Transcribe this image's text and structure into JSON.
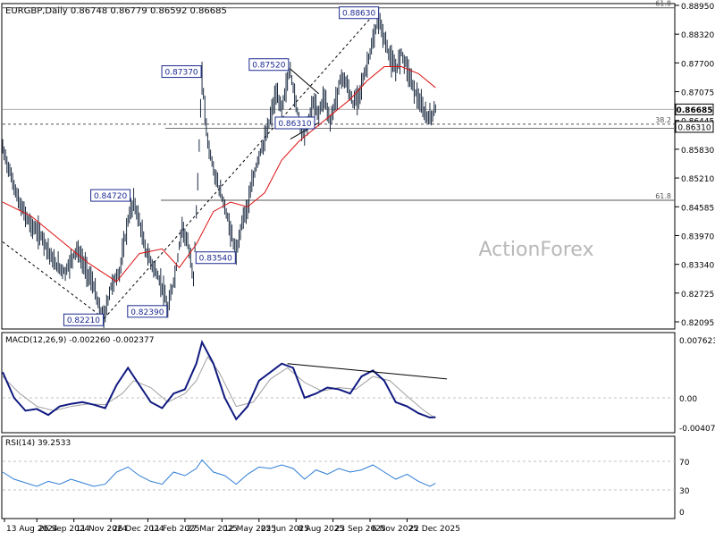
{
  "chart_data": {
    "type": "line",
    "title": "EURGBP,Daily",
    "ohlc_label": "0.86748 0.86779 0.86592 0.86685",
    "watermark": "ActionForex",
    "price_axis": {
      "ylim": [
        0.81985,
        0.8895
      ],
      "ticks": [
        "0.88950",
        "0.88320",
        "0.87700",
        "0.87075",
        "0.86445",
        "0.85830",
        "0.85210",
        "0.84585",
        "0.83970",
        "0.83340",
        "0.82725",
        "0.82095"
      ],
      "current_price": "0.86685",
      "level_price": "0.86310"
    },
    "x_axis": {
      "range": [
        0,
        118
      ],
      "ticks": [
        {
          "x": 0,
          "label": "13 Aug 2024"
        },
        {
          "x": 6,
          "label": "26 Sep 2024"
        },
        {
          "x": 12.5,
          "label": "11 Nov 2024"
        },
        {
          "x": 19,
          "label": "26 Dec 2024"
        },
        {
          "x": 25.5,
          "label": "11 Feb 2025"
        },
        {
          "x": 32,
          "label": "27 Mar 2025"
        },
        {
          "x": 38.5,
          "label": "12 May 2025"
        },
        {
          "x": 45,
          "label": "25 Jun 2025"
        },
        {
          "x": 51.5,
          "label": "8 Aug 2025"
        },
        {
          "x": 58,
          "label": "23 Sep 2025"
        },
        {
          "x": 64.5,
          "label": "6 Nov 2025"
        },
        {
          "x": 71,
          "label": "22 Dec 2025"
        }
      ]
    },
    "price_series": [
      {
        "x": 0,
        "y": 0.8585
      },
      {
        "x": 1.5,
        "y": 0.8525
      },
      {
        "x": 3,
        "y": 0.8465
      },
      {
        "x": 5,
        "y": 0.842
      },
      {
        "x": 7,
        "y": 0.8395
      },
      {
        "x": 9,
        "y": 0.834
      },
      {
        "x": 11,
        "y": 0.832
      },
      {
        "x": 13,
        "y": 0.837
      },
      {
        "x": 14.5,
        "y": 0.833
      },
      {
        "x": 16,
        "y": 0.829
      },
      {
        "x": 17,
        "y": 0.824
      },
      {
        "x": 17.8,
        "y": 0.8221
      },
      {
        "x": 19,
        "y": 0.829
      },
      {
        "x": 20.5,
        "y": 0.832
      },
      {
        "x": 22,
        "y": 0.843
      },
      {
        "x": 23,
        "y": 0.8472
      },
      {
        "x": 24,
        "y": 0.843
      },
      {
        "x": 25,
        "y": 0.837
      },
      {
        "x": 26.5,
        "y": 0.833
      },
      {
        "x": 28,
        "y": 0.829
      },
      {
        "x": 29,
        "y": 0.8239
      },
      {
        "x": 30.5,
        "y": 0.833
      },
      {
        "x": 31.5,
        "y": 0.842
      },
      {
        "x": 32.5,
        "y": 0.838
      },
      {
        "x": 33.5,
        "y": 0.831
      },
      {
        "x": 34.2,
        "y": 0.85
      },
      {
        "x": 35,
        "y": 0.8737
      },
      {
        "x": 36,
        "y": 0.86
      },
      {
        "x": 37,
        "y": 0.854
      },
      {
        "x": 38,
        "y": 0.85
      },
      {
        "x": 39,
        "y": 0.846
      },
      {
        "x": 40,
        "y": 0.841
      },
      {
        "x": 41,
        "y": 0.8354
      },
      {
        "x": 42,
        "y": 0.843
      },
      {
        "x": 43,
        "y": 0.846
      },
      {
        "x": 44,
        "y": 0.852
      },
      {
        "x": 45,
        "y": 0.857
      },
      {
        "x": 46,
        "y": 0.86
      },
      {
        "x": 47,
        "y": 0.865
      },
      {
        "x": 48,
        "y": 0.87
      },
      {
        "x": 49,
        "y": 0.867
      },
      {
        "x": 50,
        "y": 0.873
      },
      {
        "x": 50.5,
        "y": 0.8752
      },
      {
        "x": 51.5,
        "y": 0.868
      },
      {
        "x": 52.5,
        "y": 0.862
      },
      {
        "x": 53.5,
        "y": 0.8631
      },
      {
        "x": 54.5,
        "y": 0.868
      },
      {
        "x": 55.5,
        "y": 0.866
      },
      {
        "x": 56.5,
        "y": 0.87
      },
      {
        "x": 57.5,
        "y": 0.864
      },
      {
        "x": 58.5,
        "y": 0.869
      },
      {
        "x": 59.5,
        "y": 0.874
      },
      {
        "x": 60.5,
        "y": 0.872
      },
      {
        "x": 61.5,
        "y": 0.868
      },
      {
        "x": 62.5,
        "y": 0.87
      },
      {
        "x": 63.5,
        "y": 0.874
      },
      {
        "x": 64.5,
        "y": 0.879
      },
      {
        "x": 65,
        "y": 0.881
      },
      {
        "x": 66,
        "y": 0.8863
      },
      {
        "x": 67,
        "y": 0.882
      },
      {
        "x": 68,
        "y": 0.878
      },
      {
        "x": 69,
        "y": 0.875
      },
      {
        "x": 70,
        "y": 0.879
      },
      {
        "x": 71,
        "y": 0.876
      },
      {
        "x": 72,
        "y": 0.872
      },
      {
        "x": 73,
        "y": 0.869
      },
      {
        "x": 74,
        "y": 0.866
      },
      {
        "x": 75,
        "y": 0.865
      },
      {
        "x": 76,
        "y": 0.86685
      }
    ],
    "series": [
      {
        "type": "moving-average",
        "color": "#dd1111",
        "values": [
          {
            "x": 0,
            "y": 0.847
          },
          {
            "x": 5,
            "y": 0.844
          },
          {
            "x": 10,
            "y": 0.839
          },
          {
            "x": 15,
            "y": 0.834
          },
          {
            "x": 20,
            "y": 0.83
          },
          {
            "x": 24,
            "y": 0.836
          },
          {
            "x": 28,
            "y": 0.837
          },
          {
            "x": 31,
            "y": 0.833
          },
          {
            "x": 34,
            "y": 0.838
          },
          {
            "x": 37,
            "y": 0.845
          },
          {
            "x": 40,
            "y": 0.847
          },
          {
            "x": 43,
            "y": 0.846
          },
          {
            "x": 46,
            "y": 0.849
          },
          {
            "x": 49,
            "y": 0.856
          },
          {
            "x": 52,
            "y": 0.86
          },
          {
            "x": 55,
            "y": 0.863
          },
          {
            "x": 58,
            "y": 0.866
          },
          {
            "x": 61,
            "y": 0.869
          },
          {
            "x": 64,
            "y": 0.873
          },
          {
            "x": 67,
            "y": 0.876
          },
          {
            "x": 70,
            "y": 0.876
          },
          {
            "x": 73,
            "y": 0.8745
          },
          {
            "x": 76,
            "y": 0.8715
          }
        ]
      }
    ],
    "levels": [
      {
        "label": "61.8",
        "value": 0.8886
      },
      {
        "label": "38.2",
        "value": 0.8637
      },
      {
        "label": "61.8",
        "value": 0.8474
      },
      {
        "label": "",
        "value": 0.8628
      }
    ],
    "annotations": [
      {
        "label": "0.88630",
        "x": 66,
        "y": 0.8863
      },
      {
        "label": "0.87520",
        "x": 50.5,
        "y": 0.8752
      },
      {
        "label": "0.87370",
        "x": 35,
        "y": 0.8737
      },
      {
        "label": "0.84720",
        "x": 23,
        "y": 0.8472
      },
      {
        "label": "0.83540",
        "x": 41,
        "y": 0.8354
      },
      {
        "label": "0.82390",
        "x": 29,
        "y": 0.8239
      },
      {
        "label": "0.82210",
        "x": 17.8,
        "y": 0.8221
      },
      {
        "label": "0.86310",
        "x": 53.5,
        "y": 0.8631
      }
    ],
    "macd": {
      "label": "MACD(12,26,9) -0.002260 -0.002377",
      "ylim": [
        -0.004073,
        0.007623
      ],
      "ticks": [
        "0.007623",
        "0.00",
        "-0.004073"
      ],
      "line": [
        {
          "x": 0,
          "y": 0.003
        },
        {
          "x": 2,
          "y": 0.0
        },
        {
          "x": 4,
          "y": -0.0015
        },
        {
          "x": 6,
          "y": -0.0013
        },
        {
          "x": 8,
          "y": -0.002
        },
        {
          "x": 10,
          "y": -0.001
        },
        {
          "x": 12,
          "y": -0.0007
        },
        {
          "x": 14,
          "y": -0.0005
        },
        {
          "x": 16,
          "y": -0.0008
        },
        {
          "x": 18,
          "y": -0.0012
        },
        {
          "x": 20,
          "y": 0.0015
        },
        {
          "x": 22,
          "y": 0.0035
        },
        {
          "x": 24,
          "y": 0.0015
        },
        {
          "x": 26,
          "y": -0.0005
        },
        {
          "x": 28,
          "y": -0.0012
        },
        {
          "x": 30,
          "y": 0.0005
        },
        {
          "x": 32,
          "y": 0.001
        },
        {
          "x": 34,
          "y": 0.004
        },
        {
          "x": 35,
          "y": 0.0065
        },
        {
          "x": 37,
          "y": 0.004
        },
        {
          "x": 39,
          "y": 0.0
        },
        {
          "x": 41,
          "y": -0.0025
        },
        {
          "x": 43,
          "y": -0.001
        },
        {
          "x": 45,
          "y": 0.002
        },
        {
          "x": 47,
          "y": 0.003
        },
        {
          "x": 49,
          "y": 0.004
        },
        {
          "x": 51,
          "y": 0.0035
        },
        {
          "x": 53,
          "y": 0.0
        },
        {
          "x": 55,
          "y": 0.0005
        },
        {
          "x": 57,
          "y": 0.0012
        },
        {
          "x": 59,
          "y": 0.001
        },
        {
          "x": 61,
          "y": 0.0005
        },
        {
          "x": 63,
          "y": 0.0025
        },
        {
          "x": 65,
          "y": 0.0032
        },
        {
          "x": 67,
          "y": 0.002
        },
        {
          "x": 69,
          "y": -0.0005
        },
        {
          "x": 71,
          "y": -0.001
        },
        {
          "x": 73,
          "y": -0.0018
        },
        {
          "x": 75,
          "y": -0.0023
        },
        {
          "x": 76,
          "y": -0.00226
        }
      ],
      "signal": [
        {
          "x": 0,
          "y": 0.0025
        },
        {
          "x": 3,
          "y": 0.0005
        },
        {
          "x": 6,
          "y": -0.001
        },
        {
          "x": 9,
          "y": -0.0015
        },
        {
          "x": 12,
          "y": -0.001
        },
        {
          "x": 15,
          "y": -0.0007
        },
        {
          "x": 18,
          "y": -0.0008
        },
        {
          "x": 21,
          "y": 0.0005
        },
        {
          "x": 23,
          "y": 0.002
        },
        {
          "x": 26,
          "y": 0.0012
        },
        {
          "x": 29,
          "y": -0.0005
        },
        {
          "x": 32,
          "y": 0.0005
        },
        {
          "x": 34,
          "y": 0.002
        },
        {
          "x": 36,
          "y": 0.0048
        },
        {
          "x": 38,
          "y": 0.003
        },
        {
          "x": 41,
          "y": -0.001
        },
        {
          "x": 44,
          "y": -0.0005
        },
        {
          "x": 47,
          "y": 0.0022
        },
        {
          "x": 50,
          "y": 0.0035
        },
        {
          "x": 53,
          "y": 0.0018
        },
        {
          "x": 56,
          "y": 0.0008
        },
        {
          "x": 59,
          "y": 0.0012
        },
        {
          "x": 62,
          "y": 0.001
        },
        {
          "x": 65,
          "y": 0.0025
        },
        {
          "x": 68,
          "y": 0.002
        },
        {
          "x": 71,
          "y": 0.0002
        },
        {
          "x": 74,
          "y": -0.0015
        },
        {
          "x": 76,
          "y": -0.002377
        }
      ],
      "trendline": [
        {
          "x": 50,
          "y": 0.004
        },
        {
          "x": 78,
          "y": 0.0022
        }
      ]
    },
    "rsi": {
      "label": "RSI(14) 39.2533",
      "ylim": [
        0,
        100
      ],
      "ticks": [
        {
          "value": 70,
          "label": "70"
        },
        {
          "value": 30,
          "label": "30"
        },
        {
          "value": 0,
          "label": "0"
        }
      ],
      "values": [
        {
          "x": 0,
          "y": 55
        },
        {
          "x": 2,
          "y": 45
        },
        {
          "x": 4,
          "y": 40
        },
        {
          "x": 6,
          "y": 35
        },
        {
          "x": 8,
          "y": 42
        },
        {
          "x": 10,
          "y": 38
        },
        {
          "x": 12,
          "y": 45
        },
        {
          "x": 14,
          "y": 40
        },
        {
          "x": 16,
          "y": 35
        },
        {
          "x": 18,
          "y": 38
        },
        {
          "x": 20,
          "y": 55
        },
        {
          "x": 22,
          "y": 62
        },
        {
          "x": 24,
          "y": 50
        },
        {
          "x": 26,
          "y": 42
        },
        {
          "x": 28,
          "y": 38
        },
        {
          "x": 30,
          "y": 55
        },
        {
          "x": 32,
          "y": 50
        },
        {
          "x": 34,
          "y": 60
        },
        {
          "x": 35,
          "y": 72
        },
        {
          "x": 37,
          "y": 55
        },
        {
          "x": 39,
          "y": 50
        },
        {
          "x": 41,
          "y": 38
        },
        {
          "x": 43,
          "y": 52
        },
        {
          "x": 45,
          "y": 62
        },
        {
          "x": 47,
          "y": 60
        },
        {
          "x": 49,
          "y": 65
        },
        {
          "x": 51,
          "y": 60
        },
        {
          "x": 53,
          "y": 45
        },
        {
          "x": 55,
          "y": 58
        },
        {
          "x": 57,
          "y": 52
        },
        {
          "x": 59,
          "y": 60
        },
        {
          "x": 61,
          "y": 55
        },
        {
          "x": 63,
          "y": 58
        },
        {
          "x": 65,
          "y": 65
        },
        {
          "x": 67,
          "y": 55
        },
        {
          "x": 69,
          "y": 45
        },
        {
          "x": 71,
          "y": 52
        },
        {
          "x": 73,
          "y": 42
        },
        {
          "x": 75,
          "y": 35
        },
        {
          "x": 76,
          "y": 39.25
        }
      ]
    }
  }
}
